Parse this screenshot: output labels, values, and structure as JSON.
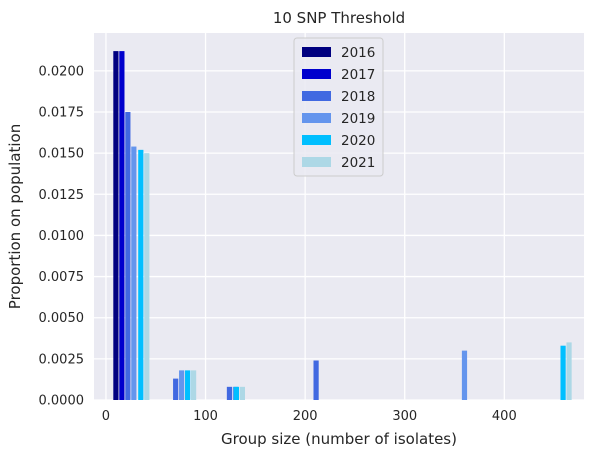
{
  "chart_data": {
    "type": "bar",
    "title": "10 SNP Threshold",
    "xlabel": "Group size (number of isolates)",
    "ylabel": "Proportion on population",
    "xlim": [
      -12,
      480
    ],
    "ylim": [
      0,
      0.0223
    ],
    "xticks": [
      0,
      100,
      200,
      300,
      400
    ],
    "xtick_labels": [
      "0",
      "100",
      "200",
      "300",
      "400"
    ],
    "yticks": [
      0,
      0.0025,
      0.005,
      0.0075,
      0.01,
      0.0125,
      0.015,
      0.0175,
      0.02
    ],
    "ytick_labels": [
      "0.0000",
      "0.0025",
      "0.0050",
      "0.0075",
      "0.0100",
      "0.0125",
      "0.0150",
      "0.0175",
      "0.0200"
    ],
    "grid": true,
    "background": "#EAEAF2",
    "legend_position": "top-center",
    "series": [
      {
        "name": "2016",
        "color": "#000080",
        "points": [
          {
            "x": 10,
            "y": 0.0212
          }
        ]
      },
      {
        "name": "2017",
        "color": "#0000CD",
        "points": [
          {
            "x": 16,
            "y": 0.0212
          }
        ]
      },
      {
        "name": "2018",
        "color": "#4169E1",
        "points": [
          {
            "x": 22,
            "y": 0.0175
          },
          {
            "x": 70,
            "y": 0.0013
          },
          {
            "x": 124,
            "y": 0.0008
          },
          {
            "x": 211,
            "y": 0.0024
          }
        ]
      },
      {
        "name": "2019",
        "color": "#6495ED",
        "points": [
          {
            "x": 28,
            "y": 0.0154
          },
          {
            "x": 76,
            "y": 0.0018
          },
          {
            "x": 130,
            "y": 0.0008
          },
          {
            "x": 360,
            "y": 0.003
          }
        ]
      },
      {
        "name": "2020",
        "color": "#00BFFF",
        "points": [
          {
            "x": 35,
            "y": 0.0152
          },
          {
            "x": 82,
            "y": 0.0018
          },
          {
            "x": 131,
            "y": 0.0008
          },
          {
            "x": 459,
            "y": 0.0033
          }
        ]
      },
      {
        "name": "2021",
        "color": "#ADD8E6",
        "points": [
          {
            "x": 41,
            "y": 0.015
          },
          {
            "x": 88,
            "y": 0.0018
          },
          {
            "x": 137,
            "y": 0.0008
          },
          {
            "x": 465,
            "y": 0.0035
          }
        ]
      }
    ]
  }
}
